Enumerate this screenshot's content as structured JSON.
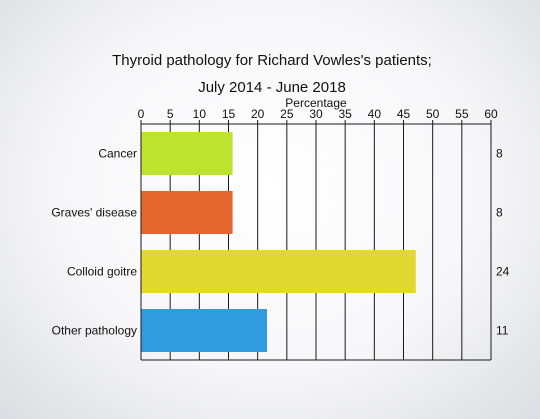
{
  "chart_data": {
    "type": "bar",
    "orientation": "horizontal",
    "title_lines": [
      "Thyroid pathology for Richard Vowles's patients;",
      "July 2014 - June 2018"
    ],
    "xlabel": "Percentage",
    "ylabel": "",
    "xlim": [
      0,
      60
    ],
    "xticks": [
      0,
      5,
      10,
      15,
      20,
      25,
      30,
      35,
      40,
      45,
      50,
      55,
      60
    ],
    "grid": true,
    "categories": [
      "Cancer",
      "Graves' disease",
      "Colloid goitre",
      "Other pathology"
    ],
    "values": [
      15.7,
      15.7,
      47.1,
      21.6
    ],
    "counts": [
      "8",
      "8",
      "24",
      "11"
    ],
    "colors": [
      "#bde22f",
      "#e4662e",
      "#e1d831",
      "#319be0"
    ]
  }
}
